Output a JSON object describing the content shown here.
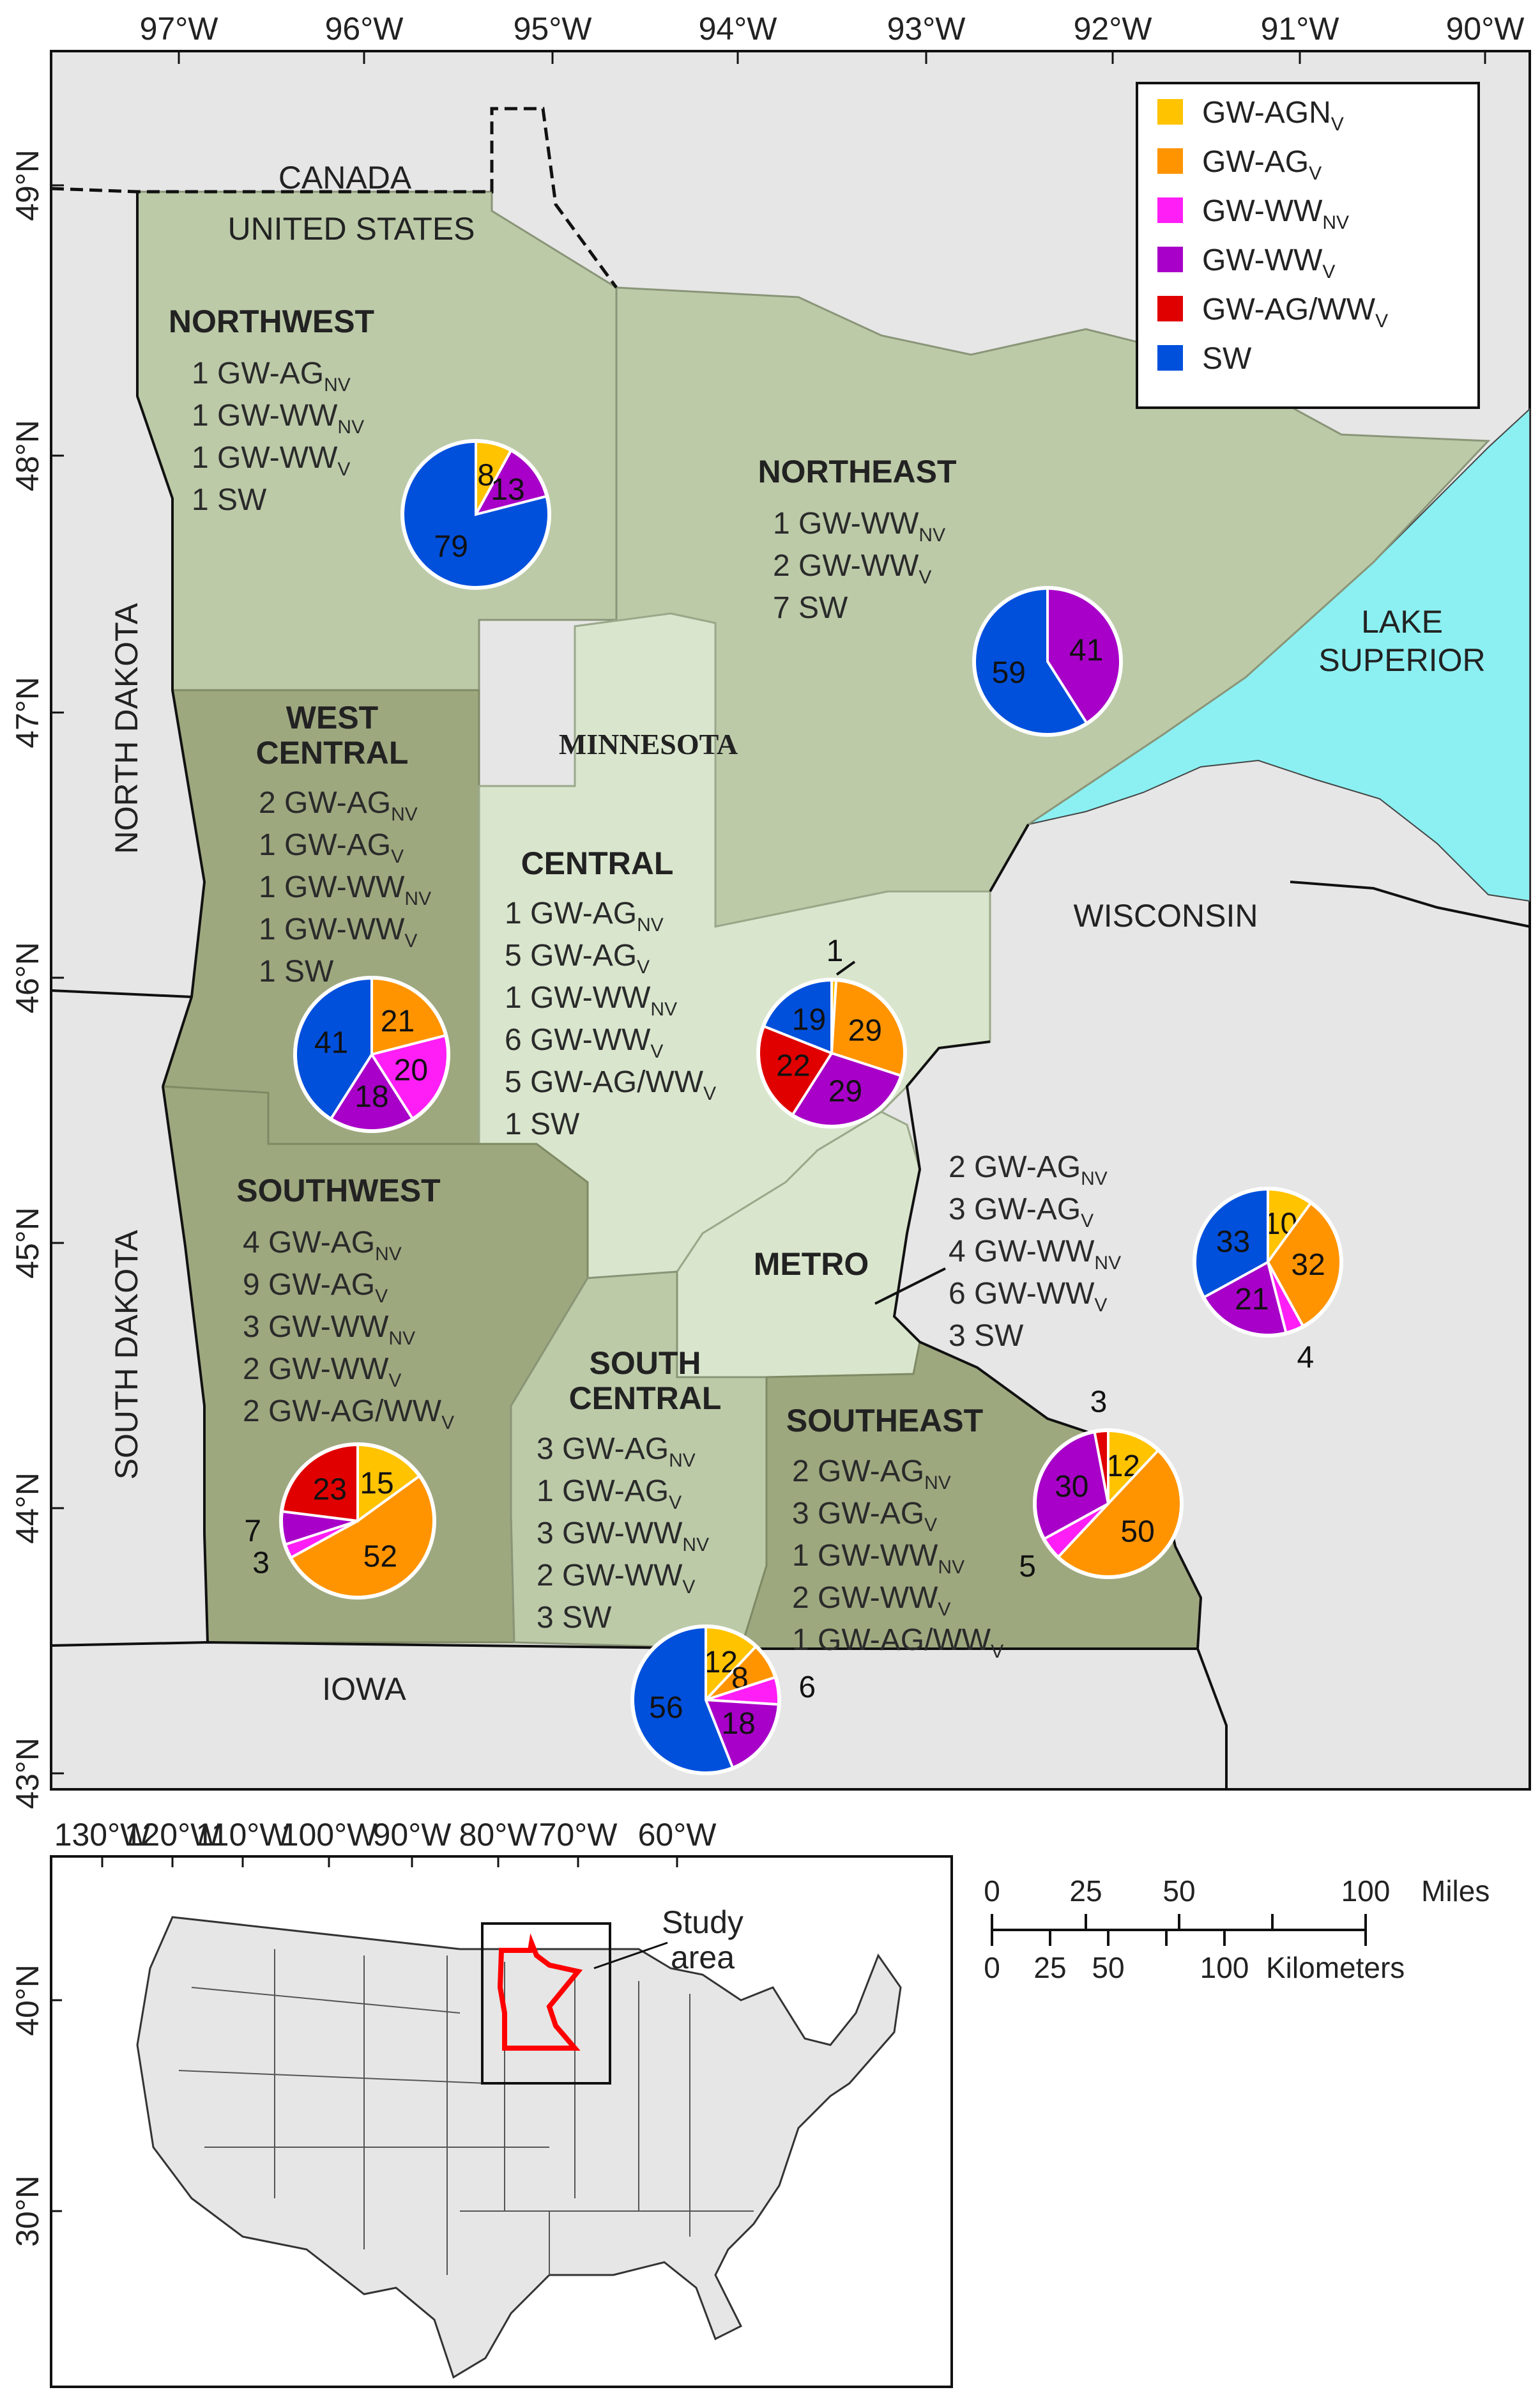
{
  "map": {
    "top_ticks": [
      "97°W",
      "96°W",
      "95°W",
      "94°W",
      "93°W",
      "92°W",
      "91°W",
      "90°W"
    ],
    "left_ticks": [
      "49°N",
      "48°N",
      "47°N",
      "46°N",
      "45°N",
      "44°N",
      "43°N"
    ],
    "places": {
      "canada": "CANADA",
      "us": "UNITED STATES",
      "north_dakota": "NORTH DAKOTA",
      "south_dakota": "SOUTH DAKOTA",
      "minnesota": "MINNESOTA",
      "wisconsin": "WISCONSIN",
      "iowa": "IOWA",
      "lake1": "LAKE",
      "lake2": "SUPERIOR"
    },
    "colors": {
      "land_dark": "#9ea87f",
      "land_mid": "#bccaa8",
      "land_light": "#d9e6cd",
      "outside": "#e6e6e6",
      "lake": "#8cf0f2"
    }
  },
  "legend": {
    "items": [
      {
        "label": "GW-AGN",
        "sub": "V",
        "color": "#ffc300"
      },
      {
        "label": "GW-AG",
        "sub": "V",
        "color": "#ff9400"
      },
      {
        "label": "GW-WW",
        "sub": "NV",
        "color": "#ff1ef5"
      },
      {
        "label": "GW-WW",
        "sub": "V",
        "color": "#a800c8"
      },
      {
        "label": "GW-AG/WW",
        "sub": "V",
        "color": "#e00000"
      },
      {
        "label": "SW",
        "sub": "",
        "color": "#0050dc"
      }
    ]
  },
  "regions": {
    "northwest": {
      "name": "NORTHWEST",
      "lines": [
        {
          "t": "1 GW-AG",
          "s": "NV"
        },
        {
          "t": "1 GW-WW",
          "s": "NV"
        },
        {
          "t": "1 GW-WW",
          "s": "V"
        },
        {
          "t": "1 SW",
          "s": ""
        }
      ]
    },
    "northeast": {
      "name": "NORTHEAST",
      "lines": [
        {
          "t": "1 GW-WW",
          "s": "NV"
        },
        {
          "t": "2 GW-WW",
          "s": "V"
        },
        {
          "t": "7 SW",
          "s": ""
        }
      ]
    },
    "westcentral": {
      "name1": "WEST",
      "name2": "CENTRAL",
      "lines": [
        {
          "t": "2 GW-AG",
          "s": "NV"
        },
        {
          "t": "1 GW-AG",
          "s": "V"
        },
        {
          "t": "1 GW-WW",
          "s": "NV"
        },
        {
          "t": "1 GW-WW",
          "s": "V"
        },
        {
          "t": "1 SW",
          "s": ""
        }
      ]
    },
    "central": {
      "name": "CENTRAL",
      "lines": [
        {
          "t": "1 GW-AG",
          "s": "NV"
        },
        {
          "t": "5 GW-AG",
          "s": "V"
        },
        {
          "t": "1 GW-WW",
          "s": "NV"
        },
        {
          "t": "6 GW-WW",
          "s": "V"
        },
        {
          "t": "5 GW-AG/WW",
          "s": "V"
        },
        {
          "t": "1 SW",
          "s": ""
        }
      ]
    },
    "metro": {
      "name": "METRO",
      "lines": [
        {
          "t": "2 GW-AG",
          "s": "NV"
        },
        {
          "t": "3 GW-AG",
          "s": "V"
        },
        {
          "t": "4 GW-WW",
          "s": "NV"
        },
        {
          "t": "6 GW-WW",
          "s": "V"
        },
        {
          "t": "3 SW",
          "s": ""
        }
      ]
    },
    "southwest": {
      "name": "SOUTHWEST",
      "lines": [
        {
          "t": "4 GW-AG",
          "s": "NV"
        },
        {
          "t": "9 GW-AG",
          "s": "V"
        },
        {
          "t": "3 GW-WW",
          "s": "NV"
        },
        {
          "t": "2 GW-WW",
          "s": "V"
        },
        {
          "t": "2 GW-AG/WW",
          "s": "V"
        }
      ]
    },
    "southcentral": {
      "name1": "SOUTH",
      "name2": "CENTRAL",
      "lines": [
        {
          "t": "3 GW-AG",
          "s": "NV"
        },
        {
          "t": "1 GW-AG",
          "s": "V"
        },
        {
          "t": "3 GW-WW",
          "s": "NV"
        },
        {
          "t": "2 GW-WW",
          "s": "V"
        },
        {
          "t": "3 SW",
          "s": ""
        }
      ]
    },
    "southeast": {
      "name": "SOUTHEAST",
      "lines": [
        {
          "t": "2 GW-AG",
          "s": "NV"
        },
        {
          "t": "3 GW-AG",
          "s": "V"
        },
        {
          "t": "1 GW-WW",
          "s": "NV"
        },
        {
          "t": "2 GW-WW",
          "s": "V"
        },
        {
          "t": "1 GW-AG/WW",
          "s": "V"
        }
      ]
    }
  },
  "pies": [
    {
      "id": "northwest",
      "slices": [
        {
          "cat": "GW-AGN_V",
          "value": 8,
          "label": "8"
        },
        {
          "cat": "GW-WW_V",
          "value": 13,
          "label": "13"
        },
        {
          "cat": "SW",
          "value": 79,
          "label": "79"
        }
      ]
    },
    {
      "id": "northeast",
      "slices": [
        {
          "cat": "GW-WW_V",
          "value": 41,
          "label": "41"
        },
        {
          "cat": "SW",
          "value": 59,
          "label": "59"
        }
      ]
    },
    {
      "id": "westcentral",
      "slices": [
        {
          "cat": "GW-AG_V",
          "value": 21,
          "label": "21"
        },
        {
          "cat": "GW-WW_NV",
          "value": 20,
          "label": "20"
        },
        {
          "cat": "GW-WW_V",
          "value": 18,
          "label": "18"
        },
        {
          "cat": "SW",
          "value": 41,
          "label": "41"
        }
      ]
    },
    {
      "id": "central",
      "slices": [
        {
          "cat": "GW-AGN_V",
          "value": 1,
          "label": "1"
        },
        {
          "cat": "GW-AG_V",
          "value": 29,
          "label": "29"
        },
        {
          "cat": "GW-WW_V",
          "value": 29,
          "label": "29"
        },
        {
          "cat": "GW-AG/WW_V",
          "value": 22,
          "label": "22"
        },
        {
          "cat": "SW",
          "value": 19,
          "label": "19"
        }
      ]
    },
    {
      "id": "metro",
      "slices": [
        {
          "cat": "GW-AGN_V",
          "value": 10,
          "label": "10"
        },
        {
          "cat": "GW-AG_V",
          "value": 32,
          "label": "32"
        },
        {
          "cat": "GW-WW_NV",
          "value": 4,
          "label": "4"
        },
        {
          "cat": "GW-WW_V",
          "value": 21,
          "label": "21"
        },
        {
          "cat": "SW",
          "value": 33,
          "label": "33"
        }
      ]
    },
    {
      "id": "southwest",
      "slices": [
        {
          "cat": "GW-AGN_V",
          "value": 15,
          "label": "15"
        },
        {
          "cat": "GW-AG_V",
          "value": 52,
          "label": "52"
        },
        {
          "cat": "GW-WW_NV",
          "value": 3,
          "label": "3"
        },
        {
          "cat": "GW-WW_V",
          "value": 7,
          "label": "7"
        },
        {
          "cat": "GW-AG/WW_V",
          "value": 23,
          "label": "23"
        }
      ]
    },
    {
      "id": "southcentral",
      "slices": [
        {
          "cat": "GW-AGN_V",
          "value": 12,
          "label": "12"
        },
        {
          "cat": "GW-AG_V",
          "value": 8,
          "label": "8"
        },
        {
          "cat": "GW-WW_NV",
          "value": 6,
          "label": "6"
        },
        {
          "cat": "GW-WW_V",
          "value": 18,
          "label": "18"
        },
        {
          "cat": "SW",
          "value": 56,
          "label": "56"
        }
      ]
    },
    {
      "id": "southeast",
      "slices": [
        {
          "cat": "GW-AGN_V",
          "value": 12,
          "label": "12"
        },
        {
          "cat": "GW-AG_V",
          "value": 50,
          "label": "50"
        },
        {
          "cat": "GW-WW_NV",
          "value": 5,
          "label": "5"
        },
        {
          "cat": "GW-WW_V",
          "value": 30,
          "label": "30"
        },
        {
          "cat": "GW-AG/WW_V",
          "value": 3,
          "label": "3"
        }
      ]
    }
  ],
  "inset": {
    "top_ticks": [
      "130°W",
      "120°W",
      "110°W",
      "100°W",
      "90°W",
      "80°W",
      "70°W",
      "60°W"
    ],
    "left_ticks": [
      "40°N",
      "30°N"
    ],
    "study_label1": "Study",
    "study_label2": "area",
    "highlight": "#ff0000"
  },
  "scale": {
    "miles_ticks": [
      "0",
      "25",
      "50",
      "100"
    ],
    "miles_unit": "Miles",
    "km_ticks": [
      "0",
      "25",
      "50",
      "100"
    ],
    "km_unit": "Kilometers"
  }
}
